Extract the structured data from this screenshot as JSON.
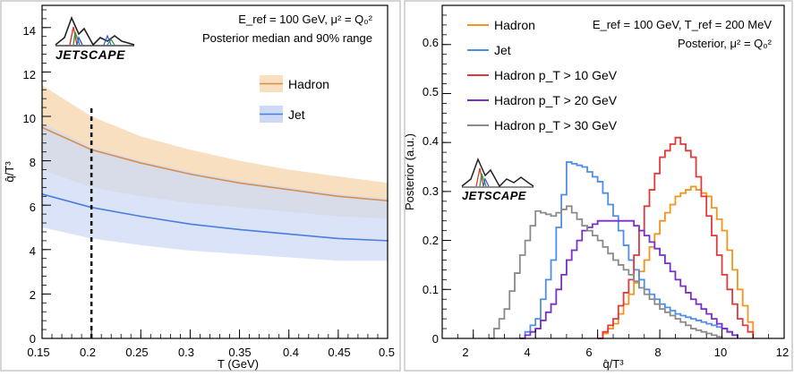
{
  "chart_data": [
    {
      "type": "line",
      "xlabel": "T (GeV)",
      "ylabel": "q̂/T³",
      "xlim": [
        0.15,
        0.5
      ],
      "ylim": [
        0,
        15
      ],
      "xticks": [
        "0.15",
        "0.2",
        "0.25",
        "0.3",
        "0.35",
        "0.4",
        "0.45",
        "0.5"
      ],
      "yticks": [
        "0",
        "2",
        "4",
        "6",
        "8",
        "10",
        "12",
        "14"
      ],
      "annotations": [
        "E_ref = 100 GeV,   μ² = Q₀²",
        "Posterior median and 90% range"
      ],
      "logo_text": "JETSCAPE",
      "vline_x": 0.2,
      "legend_position": "right",
      "series": [
        {
          "name": "Hadron",
          "color": "#d98e4a",
          "fill": "#f7dfbf",
          "x": [
            0.15,
            0.2,
            0.25,
            0.3,
            0.35,
            0.4,
            0.45,
            0.5
          ],
          "median": [
            9.5,
            8.5,
            7.9,
            7.4,
            7.0,
            6.7,
            6.4,
            6.2
          ],
          "upper": [
            11.4,
            10.0,
            9.1,
            8.5,
            8.0,
            7.6,
            7.3,
            7.0
          ],
          "lower": [
            7.6,
            6.8,
            6.4,
            6.1,
            5.9,
            5.7,
            5.5,
            5.4
          ]
        },
        {
          "name": "Jet",
          "color": "#4a7fdb",
          "fill": "#cdd9f5",
          "x": [
            0.15,
            0.2,
            0.25,
            0.3,
            0.35,
            0.4,
            0.45,
            0.5
          ],
          "median": [
            6.5,
            5.9,
            5.5,
            5.15,
            4.9,
            4.7,
            4.5,
            4.4
          ],
          "upper": [
            9.7,
            8.6,
            8.0,
            7.5,
            7.1,
            6.8,
            6.5,
            6.3
          ],
          "lower": [
            5.0,
            4.5,
            4.2,
            3.95,
            3.8,
            3.65,
            3.5,
            3.5
          ]
        }
      ]
    },
    {
      "type": "line",
      "xlabel": "q̂/T³",
      "ylabel": "Posterior (a.u.)",
      "xlim": [
        1,
        12
      ],
      "ylim": [
        0,
        0.68
      ],
      "xticks": [
        "2",
        "4",
        "6",
        "8",
        "10",
        "12"
      ],
      "yticks": [
        "0",
        "0.1",
        "0.2",
        "0.3",
        "0.4",
        "0.5",
        "0.6"
      ],
      "annotations": [
        "E_ref = 100 GeV, T_ref = 200 MeV",
        "Posterior,   μ² = Q₀²"
      ],
      "logo_text": "JETSCAPE",
      "legend_position": "top-left",
      "series": [
        {
          "name": "Hadron",
          "color": "#f0961e",
          "x": [
            6.0,
            6.5,
            7.0,
            7.5,
            8.0,
            8.5,
            9.0,
            9.5,
            10.0,
            10.5,
            11.0
          ],
          "values": [
            0.0,
            0.03,
            0.09,
            0.16,
            0.24,
            0.29,
            0.31,
            0.29,
            0.22,
            0.1,
            0.0
          ]
        },
        {
          "name": "Jet",
          "color": "#4f8ee8",
          "x": [
            3.5,
            4.0,
            4.5,
            5.0,
            5.5,
            6.0,
            6.5,
            7.0,
            7.5,
            8.0,
            8.5,
            9.0,
            9.5,
            10.0,
            10.5
          ],
          "values": [
            0.0,
            0.04,
            0.16,
            0.36,
            0.35,
            0.32,
            0.25,
            0.16,
            0.1,
            0.07,
            0.05,
            0.04,
            0.03,
            0.02,
            0.0
          ]
        },
        {
          "name": "Hadron p_T > 10 GeV",
          "color": "#e03b3b",
          "x": [
            6.0,
            6.5,
            7.0,
            7.5,
            8.0,
            8.5,
            9.0,
            9.5,
            10.0,
            10.5,
            11.0
          ],
          "values": [
            0.0,
            0.04,
            0.12,
            0.27,
            0.37,
            0.41,
            0.37,
            0.25,
            0.13,
            0.04,
            0.0
          ]
        },
        {
          "name": "Hadron p_T > 20 GeV",
          "color": "#7a2fc8",
          "x": [
            3.5,
            4.0,
            4.5,
            5.0,
            5.5,
            6.0,
            6.5,
            7.0,
            7.5,
            8.0,
            8.5,
            9.0,
            9.5,
            10.0,
            10.5
          ],
          "values": [
            0.0,
            0.02,
            0.07,
            0.16,
            0.22,
            0.24,
            0.24,
            0.24,
            0.21,
            0.17,
            0.12,
            0.08,
            0.05,
            0.02,
            0.0
          ]
        },
        {
          "name": "Hadron p_T > 30 GeV",
          "color": "#8a8a8a",
          "x": [
            2.5,
            3.0,
            3.5,
            4.0,
            4.5,
            5.0,
            5.5,
            6.0,
            6.5,
            7.0,
            7.5,
            8.0,
            8.5,
            9.0,
            9.5,
            10.0
          ],
          "values": [
            0.0,
            0.06,
            0.17,
            0.26,
            0.25,
            0.27,
            0.23,
            0.2,
            0.16,
            0.13,
            0.09,
            0.06,
            0.04,
            0.02,
            0.01,
            0.0
          ]
        }
      ]
    }
  ]
}
